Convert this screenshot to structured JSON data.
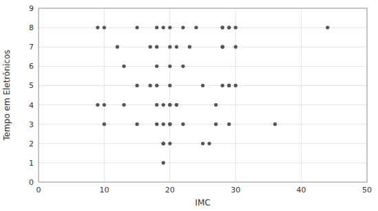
{
  "chart_data": {
    "type": "scatter",
    "xlabel": "IMC",
    "ylabel": "Tempo em Eletrônicos",
    "x": [
      9,
      10,
      9,
      10,
      10,
      12,
      13,
      13,
      15,
      15,
      15,
      17,
      17,
      18,
      18,
      18,
      18,
      18,
      18,
      19,
      19,
      19,
      19,
      19,
      19,
      19,
      20,
      20,
      20,
      20,
      20,
      20,
      20,
      20,
      20,
      21,
      21,
      21,
      22,
      22,
      22,
      23,
      24,
      25,
      25,
      26,
      27,
      27,
      28,
      28,
      28,
      28,
      28,
      29,
      29,
      29,
      29,
      29,
      30,
      30,
      30,
      36,
      44
    ],
    "values": [
      8,
      8,
      4,
      4,
      3,
      7,
      6,
      4,
      8,
      5,
      3,
      7,
      5,
      8,
      7,
      6,
      5,
      4,
      3,
      8,
      4,
      3,
      2,
      2,
      2,
      1,
      8,
      7,
      6,
      5,
      4,
      4,
      3,
      3,
      2,
      7,
      4,
      4,
      8,
      6,
      3,
      7,
      8,
      5,
      2,
      2,
      4,
      3,
      8,
      8,
      7,
      7,
      5,
      8,
      8,
      5,
      5,
      3,
      8,
      7,
      5,
      3,
      8
    ],
    "color": "#555555",
    "xlim": [
      0,
      50
    ],
    "ylim": [
      0,
      9
    ],
    "xticks": [
      0,
      10,
      20,
      30,
      40,
      50
    ],
    "yticks": [
      0,
      1,
      2,
      3,
      4,
      5,
      6,
      7,
      8,
      9
    ],
    "grid": true
  }
}
